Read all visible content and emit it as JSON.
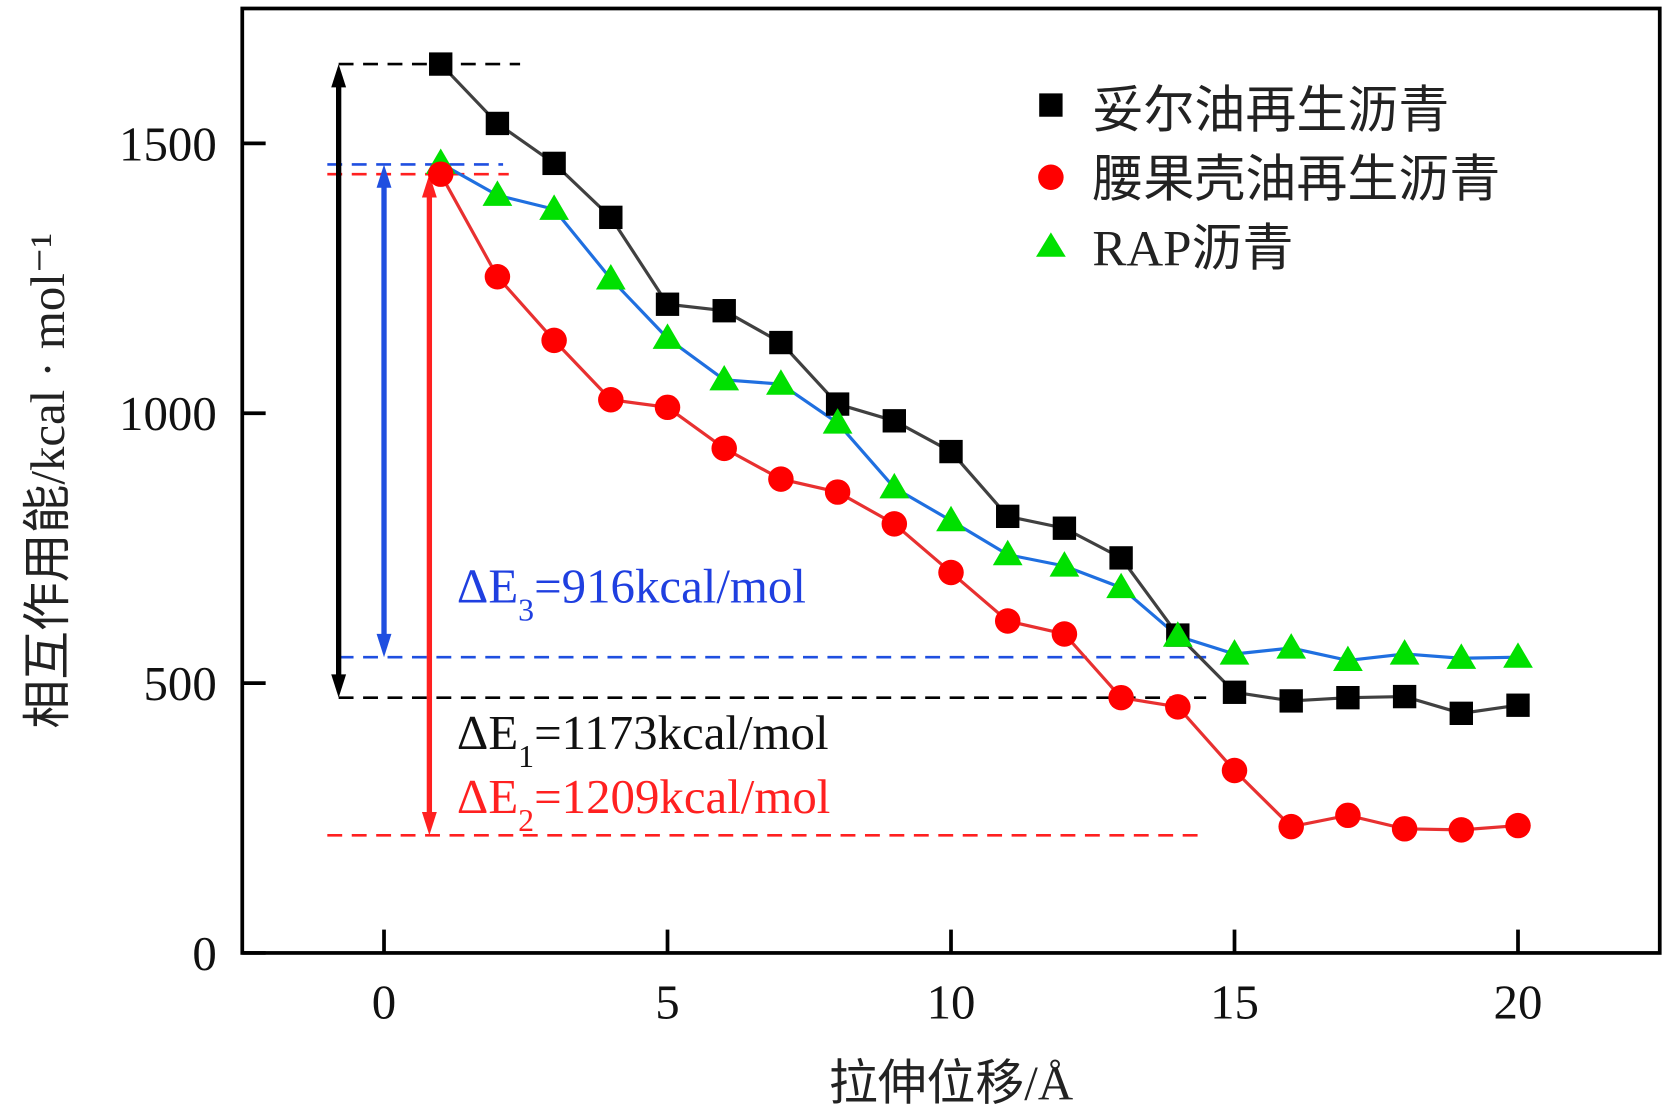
{
  "chart_data": {
    "type": "line",
    "title": "",
    "xlabel": "拉伸位移/Å",
    "ylabel": "相互作用能/kcal · mol⁻¹",
    "xlim": [
      -2.5,
      22.5
    ],
    "ylim": [
      0,
      1750
    ],
    "xticks": [
      0,
      5,
      10,
      15,
      20
    ],
    "yticks": [
      0,
      500,
      1000,
      1500
    ],
    "grid": false,
    "legend_position": "top-right",
    "x": [
      1,
      2,
      3,
      4,
      5,
      6,
      7,
      8,
      9,
      10,
      11,
      12,
      13,
      14,
      15,
      16,
      17,
      18,
      19,
      20
    ],
    "series": [
      {
        "name": "妥尔油再生沥青",
        "color": "#000000",
        "line_color": "#404040",
        "marker": "square",
        "values": [
          1647,
          1537,
          1463,
          1363,
          1202,
          1190,
          1131,
          1017,
          986,
          929,
          809,
          787,
          732,
          589,
          483,
          467,
          473,
          475,
          444,
          459
        ]
      },
      {
        "name": "腰果壳油再生沥青",
        "color": "#ff0000",
        "line_color": "#e83030",
        "marker": "circle",
        "values": [
          1443,
          1253,
          1135,
          1025,
          1011,
          935,
          878,
          854,
          795,
          705,
          615,
          591,
          473,
          456,
          338,
          234,
          255,
          230,
          228,
          236
        ]
      },
      {
        "name": "RAP沥青",
        "color": "#00e000",
        "line_color": "#1f6fe0",
        "marker": "triangle",
        "values": [
          1463,
          1404,
          1378,
          1249,
          1139,
          1062,
          1054,
          982,
          862,
          801,
          738,
          717,
          677,
          587,
          554,
          565,
          542,
          554,
          546,
          548
        ]
      }
    ],
    "reference_lines": [
      {
        "color": "#000000",
        "y": 1647,
        "x": [
          -0.8,
          2.4
        ]
      },
      {
        "color": "#000000",
        "y": 473,
        "x": [
          -0.8,
          14.5
        ]
      },
      {
        "color": "#1f4fe0",
        "y": 1461,
        "x": [
          -1,
          2.1
        ]
      },
      {
        "color": "#1f4fe0",
        "y": 548,
        "x": [
          -0.8,
          14.5
        ]
      },
      {
        "color": "#ff2020",
        "y": 1443,
        "x": [
          -1,
          2.2
        ]
      },
      {
        "color": "#ff2020",
        "y": 218,
        "x": [
          -1,
          14.5
        ]
      }
    ],
    "arrows": [
      {
        "color": "#000000",
        "x": -0.8,
        "y": [
          473,
          1647
        ]
      },
      {
        "color": "#1f4fe0",
        "x": 0,
        "y": [
          548,
          1461
        ]
      },
      {
        "color": "#ff2020",
        "x": 0.8,
        "y": [
          218,
          1443
        ]
      }
    ],
    "annotations": {
      "e1": {
        "delta": "ΔE",
        "sub": "1",
        "value": "=1173kcal/mol",
        "color": "#111111"
      },
      "e2": {
        "delta": "ΔE",
        "sub": "2",
        "value": "=1209kcal/mol",
        "color": "#ff2020"
      },
      "e3": {
        "delta": "ΔE",
        "sub": "3",
        "value": "=916kcal/mol",
        "color": "#1f3fe0"
      }
    }
  }
}
